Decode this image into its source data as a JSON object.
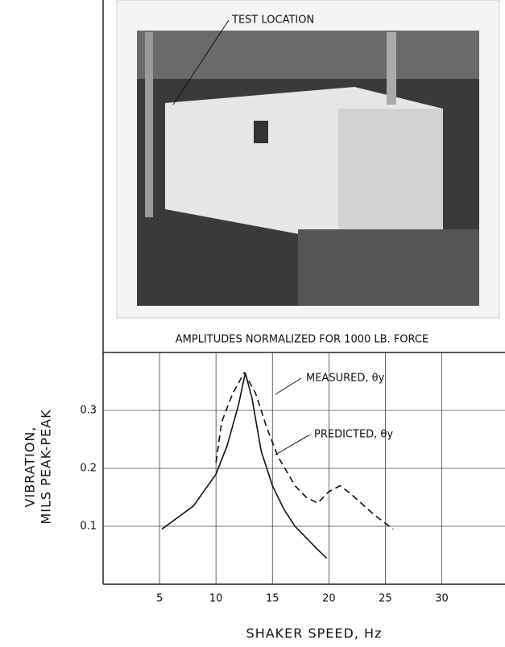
{
  "photo_label": "TEST LOCATION",
  "chart_data": {
    "type": "line",
    "title": "AMPLITUDES NORMALIZED FOR 1000 LB. FORCE",
    "x_label": "SHAKER SPEED, Hz",
    "y_label": [
      "VIBRATION,",
      "MILS PEAK-PEAK"
    ],
    "xlim": [
      0,
      35.6
    ],
    "ylim": [
      0,
      0.4
    ],
    "xticks": [
      5,
      10,
      15,
      20,
      25,
      30
    ],
    "yticks": [
      0.1,
      0.2,
      0.3
    ],
    "grid": true,
    "series": [
      {
        "name": "MEASURED, θy",
        "color": "#111",
        "dash": true,
        "x": [
          10,
          10.5,
          11.5,
          12.5,
          13.5,
          14.5,
          15.5,
          17,
          18,
          19,
          20,
          21,
          22,
          24,
          25.7
        ],
        "values": [
          0.21,
          0.28,
          0.33,
          0.365,
          0.33,
          0.27,
          0.22,
          0.17,
          0.15,
          0.14,
          0.16,
          0.17,
          0.155,
          0.12,
          0.095
        ]
      },
      {
        "name": "PREDICTED, θy",
        "color": "#111",
        "dash": false,
        "x": [
          5.2,
          8,
          10,
          11,
          12,
          12.6,
          13.2,
          14,
          15,
          16,
          17,
          18,
          19,
          19.8
        ],
        "values": [
          0.095,
          0.135,
          0.19,
          0.24,
          0.31,
          0.365,
          0.32,
          0.23,
          0.17,
          0.13,
          0.1,
          0.08,
          0.06,
          0.045
        ]
      }
    ]
  }
}
